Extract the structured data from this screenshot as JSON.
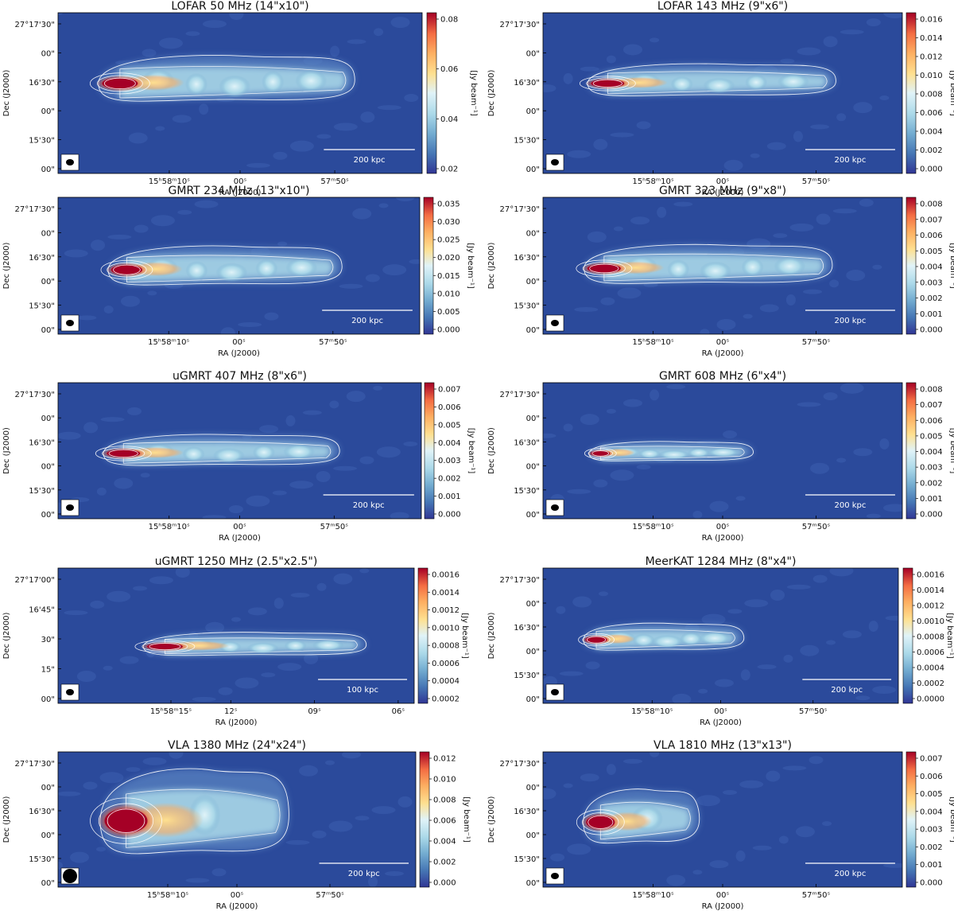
{
  "axis": {
    "ra_label": "RA (J2000)",
    "dec_label": "Dec (J2000)",
    "units_label": "[Jy beam⁻¹]"
  },
  "colors": {
    "background": "#2b4a9b",
    "contour": "#ffffff"
  },
  "panels": [
    {
      "title": "LOFAR 50 MHz (14\"x10\")",
      "dec_ticks": [
        "27°17'30\"",
        "00\"",
        "16'30\"",
        "00\"",
        "15'30\"",
        "00\""
      ],
      "ra_ticks": [
        "15ʰ58ᵐ10ˢ",
        "00ˢ",
        "57ᵐ50ˢ"
      ],
      "colorbar_ticks": [
        "0.08",
        "0.06",
        "0.04",
        "0.02"
      ],
      "scalebar_label": "200 kpc"
    },
    {
      "title": "LOFAR 143 MHz (9\"x6\")",
      "dec_ticks": [
        "27°17'30\"",
        "00\"",
        "16'30\"",
        "00\"",
        "15'30\"",
        "00\""
      ],
      "ra_ticks": [
        "15ʰ58ᵐ10ˢ",
        "00ˢ",
        "57ᵐ50ˢ"
      ],
      "colorbar_ticks": [
        "0.016",
        "0.014",
        "0.012",
        "0.010",
        "0.008",
        "0.006",
        "0.004",
        "0.002",
        "0.000"
      ],
      "scalebar_label": "200 kpc"
    },
    {
      "title": "GMRT 234 MHz (13\"x10\")",
      "dec_ticks": [
        "27°17'30\"",
        "00\"",
        "16'30\"",
        "00\"",
        "15'30\"",
        "00\""
      ],
      "ra_ticks": [
        "15ʰ58ᵐ10ˢ",
        "00ˢ",
        "57ᵐ50ˢ"
      ],
      "colorbar_ticks": [
        "0.035",
        "0.030",
        "0.025",
        "0.020",
        "0.015",
        "0.010",
        "0.005",
        "0.000"
      ],
      "scalebar_label": "200 kpc"
    },
    {
      "title": "GMRT 323 MHz (9\"x8\")",
      "dec_ticks": [
        "27°17'30\"",
        "00\"",
        "16'30\"",
        "00\"",
        "15'30\"",
        "00\""
      ],
      "ra_ticks": [
        "15ʰ58ᵐ10ˢ",
        "00ˢ",
        "57ᵐ50ˢ"
      ],
      "colorbar_ticks": [
        "0.008",
        "0.007",
        "0.006",
        "0.005",
        "0.004",
        "0.003",
        "0.002",
        "0.001",
        "0.000"
      ],
      "scalebar_label": "200 kpc"
    },
    {
      "title": "uGMRT 407 MHz (8\"x6\")",
      "dec_ticks": [
        "27°17'30\"",
        "00\"",
        "16'30\"",
        "00\"",
        "15'30\"",
        "00\""
      ],
      "ra_ticks": [
        "15ʰ58ᵐ10ˢ",
        "00ˢ",
        "57ᵐ50ˢ"
      ],
      "colorbar_ticks": [
        "0.007",
        "0.006",
        "0.005",
        "0.004",
        "0.003",
        "0.002",
        "0.001",
        "0.000"
      ],
      "scalebar_label": "200 kpc"
    },
    {
      "title": "GMRT 608 MHz (6\"x4\")",
      "dec_ticks": [
        "27°17'30\"",
        "00\"",
        "16'30\"",
        "00\"",
        "15'30\"",
        "00\""
      ],
      "ra_ticks": [
        "15ʰ58ᵐ10ˢ",
        "00ˢ",
        "57ᵐ50ˢ"
      ],
      "colorbar_ticks": [
        "0.008",
        "0.007",
        "0.006",
        "0.005",
        "0.004",
        "0.003",
        "0.002",
        "0.001",
        "0.000"
      ],
      "scalebar_label": "200 kpc"
    },
    {
      "title": "uGMRT 1250 MHz (2.5\"x2.5\")",
      "dec_ticks": [
        "27°17'00\"",
        "16'45\"",
        "30\"",
        "15\"",
        "00\""
      ],
      "ra_ticks": [
        "15ʰ58ᵐ15ˢ",
        "12ˢ",
        "09ˢ",
        "06ˢ"
      ],
      "colorbar_ticks": [
        "0.0016",
        "0.0014",
        "0.0012",
        "0.0010",
        "0.0008",
        "0.0006",
        "0.0004",
        "0.0002"
      ],
      "scalebar_label": "100 kpc"
    },
    {
      "title": "MeerKAT 1284 MHz (8\"x4\")",
      "dec_ticks": [
        "27°17'30\"",
        "00\"",
        "16'30\"",
        "00\"",
        "15'30\"",
        "00\""
      ],
      "ra_ticks": [
        "15ʰ58ᵐ10ˢ",
        "00ˢ",
        "57ᵐ50ˢ"
      ],
      "colorbar_ticks": [
        "0.0016",
        "0.0014",
        "0.0012",
        "0.0010",
        "0.0008",
        "0.0006",
        "0.0004",
        "0.0002",
        "0.0000"
      ],
      "scalebar_label": "200 kpc"
    },
    {
      "title": "VLA 1380 MHz (24\"x24\")",
      "dec_ticks": [
        "27°17'30\"",
        "00\"",
        "16'30\"",
        "00\"",
        "15'30\"",
        "00\""
      ],
      "ra_ticks": [
        "15ʰ58ᵐ10ˢ",
        "00ˢ",
        "57ᵐ50ˢ"
      ],
      "colorbar_ticks": [
        "0.012",
        "0.010",
        "0.008",
        "0.006",
        "0.004",
        "0.002",
        "0.000"
      ],
      "scalebar_label": "200 kpc"
    },
    {
      "title": "VLA 1810 MHz (13\"x13\")",
      "dec_ticks": [
        "27°17'30\"",
        "00\"",
        "16'30\"",
        "00\"",
        "15'30\"",
        "00\""
      ],
      "ra_ticks": [
        "15ʰ58ᵐ10ˢ",
        "00ˢ",
        "57ᵐ50ˢ"
      ],
      "colorbar_ticks": [
        "0.007",
        "0.006",
        "0.005",
        "0.004",
        "0.003",
        "0.002",
        "0.001",
        "0.000"
      ],
      "scalebar_label": "200 kpc"
    }
  ]
}
